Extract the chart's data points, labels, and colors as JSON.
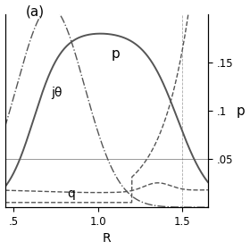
{
  "title": "(a)",
  "xlabel": "R",
  "ylabel_right": "p",
  "xlim": [
    0.45,
    1.65
  ],
  "ylim_left": [
    0.0,
    1.0
  ],
  "ylim_right": [
    0.0,
    0.2
  ],
  "yticks_right": [
    0.05,
    0.1,
    0.15
  ],
  "ytick_labels_right": [
    ".05",
    ".1",
    ".15"
  ],
  "xticks": [
    0.5,
    1.0,
    1.5
  ],
  "xtick_labels": [
    ".5",
    "1.0",
    "1.5"
  ],
  "label_p": "p",
  "label_j": "jθ",
  "label_q": "q",
  "line_color": "#555555"
}
